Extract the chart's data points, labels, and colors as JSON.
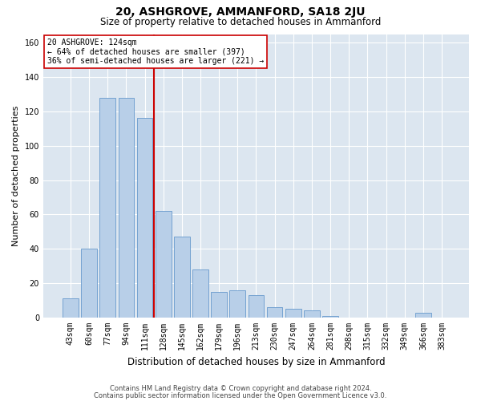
{
  "title": "20, ASHGROVE, AMMANFORD, SA18 2JU",
  "subtitle": "Size of property relative to detached houses in Ammanford",
  "xlabel": "Distribution of detached houses by size in Ammanford",
  "ylabel": "Number of detached properties",
  "categories": [
    "43sqm",
    "60sqm",
    "77sqm",
    "94sqm",
    "111sqm",
    "128sqm",
    "145sqm",
    "162sqm",
    "179sqm",
    "196sqm",
    "213sqm",
    "230sqm",
    "247sqm",
    "264sqm",
    "281sqm",
    "298sqm",
    "315sqm",
    "332sqm",
    "349sqm",
    "366sqm",
    "383sqm"
  ],
  "values": [
    11,
    40,
    128,
    128,
    116,
    62,
    47,
    28,
    15,
    16,
    13,
    6,
    5,
    4,
    1,
    0,
    0,
    0,
    0,
    3,
    0
  ],
  "bar_color": "#b8cfe8",
  "bar_edge_color": "#6699cc",
  "vline_color": "#cc0000",
  "annotation_text": "20 ASHGROVE: 124sqm\n← 64% of detached houses are smaller (397)\n36% of semi-detached houses are larger (221) →",
  "annotation_box_facecolor": "#ffffff",
  "annotation_box_edgecolor": "#cc0000",
  "ylim": [
    0,
    165
  ],
  "yticks": [
    0,
    20,
    40,
    60,
    80,
    100,
    120,
    140,
    160
  ],
  "background_color": "#dce6f0",
  "grid_color": "#ffffff",
  "footer_line1": "Contains HM Land Registry data © Crown copyright and database right 2024.",
  "footer_line2": "Contains public sector information licensed under the Open Government Licence v3.0.",
  "title_fontsize": 10,
  "subtitle_fontsize": 8.5,
  "ylabel_fontsize": 8,
  "xlabel_fontsize": 8.5,
  "tick_fontsize": 7,
  "annotation_fontsize": 7,
  "footer_fontsize": 6
}
